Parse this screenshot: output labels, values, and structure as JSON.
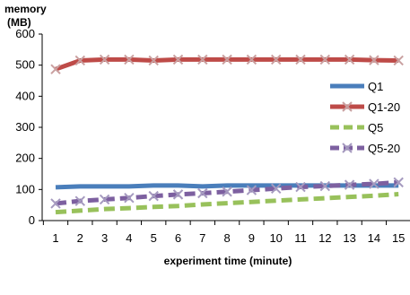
{
  "chart_data": {
    "type": "line",
    "ylabel_line1": "memory",
    "ylabel_line2": "(MB)",
    "xlabel": "experiment time (minute)",
    "ylim": [
      0,
      600
    ],
    "yticks": [
      "0",
      "100",
      "200",
      "300",
      "400",
      "500",
      "600"
    ],
    "categories": [
      "1",
      "2",
      "3",
      "4",
      "5",
      "6",
      "7",
      "8",
      "9",
      "10",
      "11",
      "12",
      "13",
      "14",
      "15"
    ],
    "grid": false,
    "legend_placement": "right",
    "series": [
      {
        "name": "Q1",
        "color": "#4a7ebb",
        "style": "solid",
        "marker": "none",
        "values": [
          107,
          110,
          110,
          110,
          113,
          113,
          110,
          113,
          113,
          113,
          113,
          113,
          113,
          113,
          113
        ]
      },
      {
        "name": "Q1-20",
        "color": "#be4b48",
        "style": "solid",
        "marker": "x",
        "values": [
          487,
          515,
          518,
          518,
          515,
          518,
          518,
          518,
          518,
          518,
          518,
          518,
          518,
          516,
          515
        ]
      },
      {
        "name": "Q5",
        "color": "#98c15b",
        "style": "dashed",
        "marker": "none",
        "values": [
          27,
          32,
          37,
          40,
          44,
          47,
          52,
          56,
          60,
          64,
          68,
          72,
          76,
          80,
          85
        ]
      },
      {
        "name": "Q5-20",
        "color": "#7d60a0",
        "style": "dashed",
        "marker": "x",
        "values": [
          55,
          63,
          68,
          73,
          79,
          84,
          88,
          93,
          98,
          103,
          108,
          111,
          115,
          118,
          123
        ]
      }
    ]
  }
}
